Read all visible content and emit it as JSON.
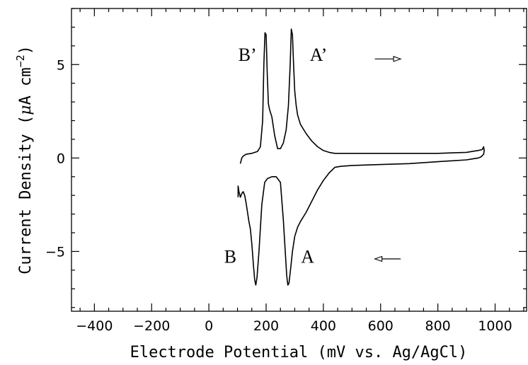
{
  "chart_data": {
    "type": "line",
    "title": "",
    "xlabel": "Electrode Potential (mV vs. Ag/AgCl)",
    "ylabel_prefix": "Current Density (",
    "ylabel_mu": "μ",
    "ylabel_unit": "A cm",
    "ylabel_exp": "−2",
    "ylabel_suffix": ")",
    "xlim": [
      -480,
      1110
    ],
    "ylim": [
      -8.2,
      8.0
    ],
    "x_ticks_major": [
      -400,
      -200,
      0,
      200,
      400,
      600,
      800,
      1000
    ],
    "x_tick_labels": [
      "−400",
      "−200",
      "0",
      "200",
      "400",
      "600",
      "800",
      "1000"
    ],
    "x_ticks_minor_step": 50,
    "y_ticks_major": [
      -5,
      0,
      5
    ],
    "y_tick_labels": [
      "−5",
      "0",
      "5"
    ],
    "y_ticks_minor_step": 1,
    "grid": false,
    "peak_labels": [
      {
        "text": "B’",
        "x": 135,
        "y": 5.2
      },
      {
        "text": "A’",
        "x": 383,
        "y": 5.2
      },
      {
        "text": "B",
        "x": 75,
        "y": -5.6
      },
      {
        "text": "A",
        "x": 345,
        "y": -5.6
      }
    ],
    "direction_arrows": [
      {
        "name": "anodic-sweep",
        "direction": "right",
        "x_from": 580,
        "x_to": 670,
        "y": 5.3
      },
      {
        "name": "cathodic-sweep",
        "direction": "left",
        "x_from": 670,
        "x_to": 580,
        "y": -5.4
      }
    ],
    "series": [
      {
        "x": [
          110,
          115,
          120,
          130,
          150,
          170,
          180,
          188,
          192,
          196,
          200,
          204,
          208,
          212,
          220,
          230,
          240,
          250,
          260,
          270,
          278,
          284,
          288,
          292,
          296,
          300,
          305,
          310,
          320,
          340,
          360,
          380,
          400,
          420,
          440,
          460,
          500,
          600,
          700,
          800,
          900,
          920,
          940,
          955,
          960,
          962,
          960,
          950,
          940,
          920,
          900,
          800,
          700,
          600,
          500,
          460,
          440,
          420,
          400,
          380,
          360,
          340,
          320,
          310,
          300,
          292,
          285,
          280,
          276,
          272,
          268,
          260,
          250,
          235,
          220,
          205,
          195,
          185,
          175,
          168,
          164,
          160,
          156,
          150,
          145,
          140,
          135,
          130,
          125,
          120,
          115,
          110,
          105,
          102,
          102
        ],
        "y": [
          -0.3,
          0.0,
          0.1,
          0.2,
          0.25,
          0.35,
          0.6,
          2.0,
          5.0,
          6.7,
          6.6,
          4.5,
          2.9,
          2.6,
          2.2,
          1.2,
          0.5,
          0.5,
          0.8,
          1.5,
          2.8,
          5.0,
          6.9,
          6.6,
          5.0,
          3.6,
          2.8,
          2.3,
          1.8,
          1.3,
          0.9,
          0.6,
          0.4,
          0.3,
          0.25,
          0.25,
          0.25,
          0.25,
          0.25,
          0.25,
          0.3,
          0.35,
          0.4,
          0.45,
          0.6,
          0.4,
          0.2,
          0.05,
          0.0,
          -0.05,
          -0.1,
          -0.2,
          -0.3,
          -0.35,
          -0.4,
          -0.45,
          -0.5,
          -0.8,
          -1.2,
          -1.7,
          -2.3,
          -2.9,
          -3.4,
          -3.7,
          -4.2,
          -5.0,
          -6.0,
          -6.7,
          -6.8,
          -6.3,
          -5.3,
          -3.3,
          -1.3,
          -1.0,
          -1.0,
          -1.1,
          -1.3,
          -2.5,
          -5.0,
          -6.4,
          -6.8,
          -6.5,
          -5.8,
          -4.6,
          -3.8,
          -3.4,
          -2.9,
          -2.4,
          -2.0,
          -1.8,
          -1.9,
          -2.1,
          -1.8,
          -1.5,
          -2.1
        ]
      }
    ]
  }
}
